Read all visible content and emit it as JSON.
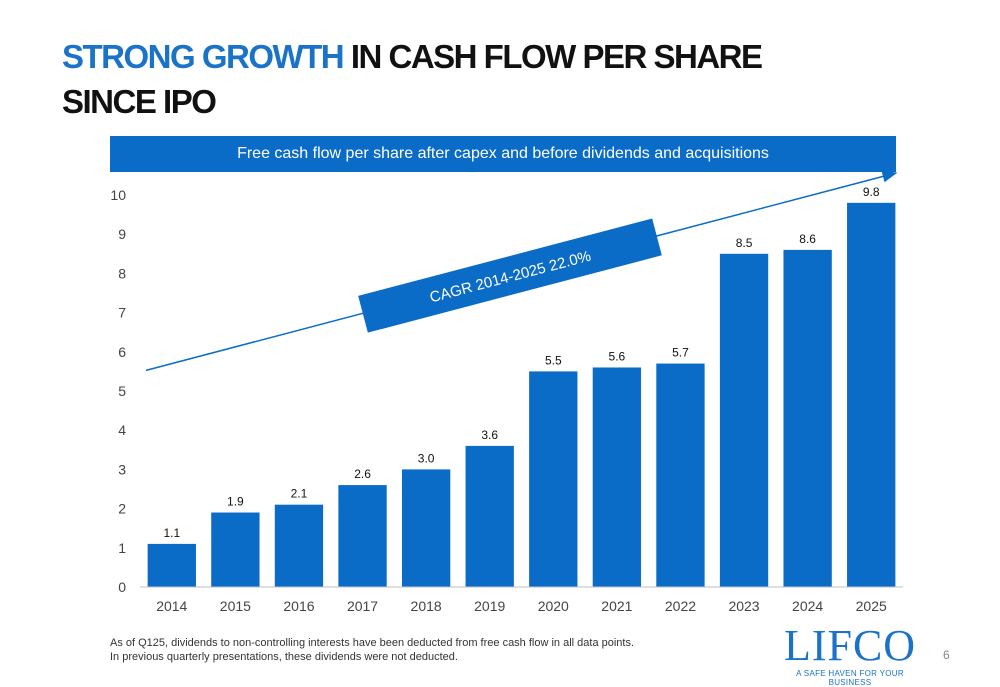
{
  "slide": {
    "title_accent": "STRONG GROWTH",
    "title_rest": " IN CASH FLOW PER SHARE",
    "title_line2": "SINCE IPO",
    "banner": "Free cash flow per share after capex and before dividends and acquisitions",
    "footnote_line1": "As of Q125, dividends to non-controlling interests have been deducted from free cash flow in all data points.",
    "footnote_line2": "In previous quarterly presentations, these dividends were not deducted.",
    "logo_text": "LIFCO",
    "logo_tagline": "A SAFE HAVEN FOR YOUR BUSINESS",
    "page_number": "6"
  },
  "colors": {
    "accent": "#1a73c9",
    "bar": "#0b6cc7",
    "banner": "#0b6cc7"
  },
  "chart_data": {
    "type": "bar",
    "categories": [
      "2014",
      "2015",
      "2016",
      "2017",
      "2018",
      "2019",
      "2020",
      "2021",
      "2022",
      "2023",
      "2024",
      "2025"
    ],
    "values": [
      1.1,
      1.9,
      2.1,
      2.6,
      3.0,
      3.6,
      5.5,
      5.6,
      5.7,
      8.5,
      8.6,
      9.8
    ],
    "value_labels": [
      "1.1",
      "1.9",
      "2.1",
      "2.6",
      "3.0",
      "3.6",
      "5.5",
      "5.6",
      "5.7",
      "8.5",
      "8.6",
      "9.8"
    ],
    "yticks": [
      "0",
      "1",
      "2",
      "3",
      "4",
      "5",
      "6",
      "7",
      "8",
      "9",
      "10"
    ],
    "ylim": [
      0,
      10
    ],
    "grid": false,
    "annotation": "CAGR 2014-2025 22.0%",
    "trend_line": {
      "start_value": 5.5,
      "end_value": 10.0
    }
  }
}
